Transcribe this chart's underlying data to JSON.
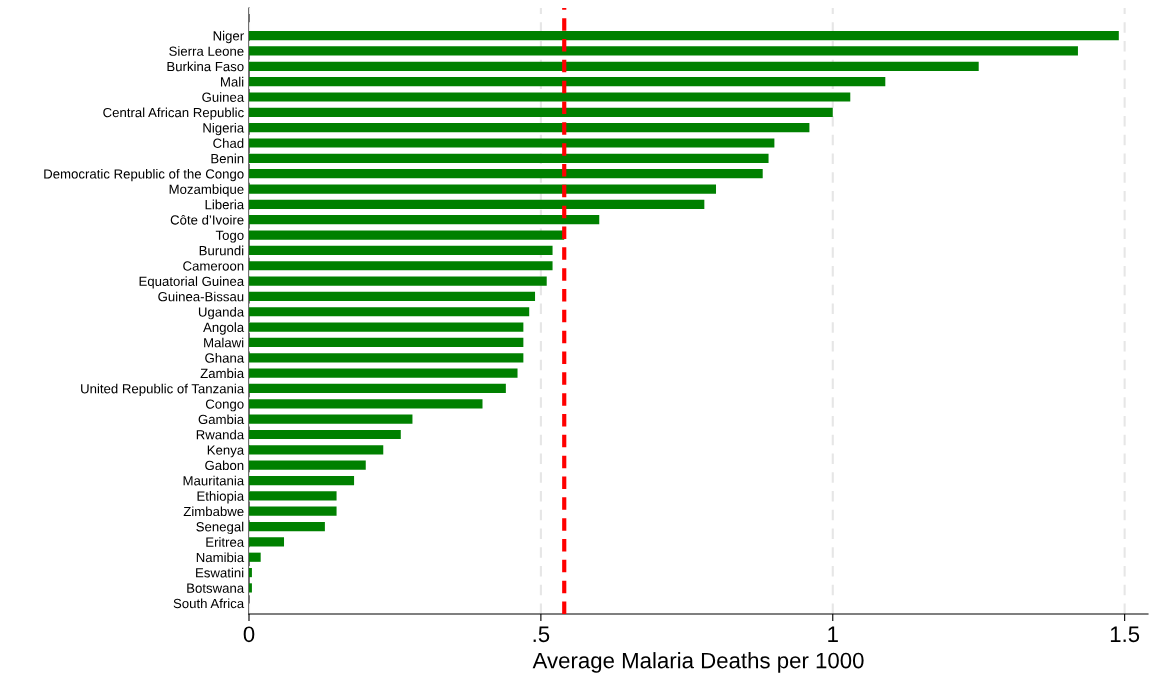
{
  "chart_data": {
    "type": "bar",
    "orientation": "horizontal",
    "xlabel": "Average Malaria Deaths per 1000",
    "categories": [
      "Niger",
      "Sierra Leone",
      "Burkina Faso",
      "Mali",
      "Guinea",
      "Central African Republic",
      "Nigeria",
      "Chad",
      "Benin",
      "Democratic Republic of the Congo",
      "Mozambique",
      "Liberia",
      "Côte d’Ivoire",
      "Togo",
      "Burundi",
      "Cameroon",
      "Equatorial Guinea",
      "Guinea-Bissau",
      "Uganda",
      "Angola",
      "Malawi",
      "Ghana",
      "Zambia",
      "United Republic of Tanzania",
      "Congo",
      "Gambia",
      "Rwanda",
      "Kenya",
      "Gabon",
      "Mauritania",
      "Ethiopia",
      "Zimbabwe",
      "Senegal",
      "Eritrea",
      "Namibia",
      "Eswatini",
      "Botswana",
      "South Africa"
    ],
    "values": [
      1.49,
      1.42,
      1.25,
      1.09,
      1.03,
      1.0,
      0.96,
      0.9,
      0.89,
      0.88,
      0.8,
      0.78,
      0.6,
      0.54,
      0.52,
      0.52,
      0.51,
      0.49,
      0.48,
      0.47,
      0.47,
      0.47,
      0.46,
      0.44,
      0.4,
      0.28,
      0.26,
      0.23,
      0.2,
      0.18,
      0.15,
      0.15,
      0.13,
      0.06,
      0.02,
      0.005,
      0.005,
      0
    ],
    "color": "#008000",
    "xlim": [
      0,
      1.54
    ],
    "xticks": [
      0,
      {
        "value": 0.5,
        "label": ".5"
      },
      1,
      1.5
    ],
    "grid": "x",
    "ref_lines": [
      {
        "axis": "x",
        "value": 0.54,
        "color": "#ff0000",
        "line_style": "dashed"
      }
    ]
  }
}
